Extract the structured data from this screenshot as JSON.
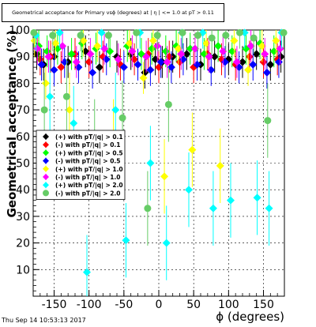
{
  "chart_data": {
    "type": "scatter",
    "title": "Geometrical acceptance for Primary vsϕ (degrees) at | η | <= 1.0 at pT > 0.11",
    "xlabel": "ϕ (degrees)",
    "ylabel": "Geometrical acceptance (%)",
    "xlim": [
      -180,
      180
    ],
    "ylim": [
      0,
      100
    ],
    "xticks": [
      -150,
      -100,
      -50,
      0,
      50,
      100,
      150
    ],
    "yticks": [
      10,
      20,
      30,
      40,
      50,
      60,
      70,
      80,
      90,
      100
    ],
    "grid": true,
    "legend_position": "middle-left",
    "series": [
      {
        "name": "(+) with pT/|q| > 0.1",
        "color": "#000000",
        "marker": "diamond",
        "x": [
          -175,
          -165,
          -150,
          -130,
          -105,
          -85,
          -60,
          -40,
          -20,
          -5,
          5,
          20,
          40,
          60,
          80,
          100,
          120,
          140,
          160,
          175
        ],
        "y": [
          91,
          87,
          90,
          88,
          92,
          86,
          90,
          91,
          84,
          89,
          88,
          90,
          91,
          87,
          90,
          89,
          88,
          91,
          87,
          90
        ]
      },
      {
        "name": "(-) with pT/|q| > 0.1",
        "color": "#ff0000",
        "marker": "diamond",
        "x": [
          -170,
          -155,
          -140,
          -120,
          -100,
          -80,
          -55,
          -35,
          -15,
          0,
          15,
          30,
          50,
          70,
          90,
          110,
          130,
          150,
          170
        ],
        "y": [
          89,
          90,
          86,
          91,
          88,
          90,
          87,
          89,
          91,
          86,
          90,
          88,
          86,
          91,
          89,
          87,
          90,
          88,
          89
        ]
      },
      {
        "name": "(+) with pT/|q| > 0.5",
        "color": "#00ff00",
        "marker": "diamond",
        "x": [
          -172,
          -160,
          -145,
          -125,
          -110,
          -90,
          -70,
          -45,
          -25,
          -10,
          10,
          25,
          45,
          65,
          85,
          105,
          125,
          145,
          165
        ],
        "y": [
          94,
          92,
          93,
          91,
          95,
          93,
          92,
          94,
          91,
          93,
          92,
          94,
          93,
          91,
          94,
          92,
          93,
          95,
          92
        ]
      },
      {
        "name": "(-) with pT/|q| > 0.5",
        "color": "#0000ff",
        "marker": "diamond",
        "x": [
          -168,
          -150,
          -135,
          -115,
          -95,
          -75,
          -50,
          -30,
          -12,
          3,
          18,
          35,
          55,
          75,
          95,
          115,
          135,
          155,
          172
        ],
        "y": [
          87,
          85,
          88,
          86,
          84,
          89,
          86,
          87,
          85,
          88,
          86,
          89,
          87,
          85,
          88,
          86,
          87,
          84,
          88
        ]
      },
      {
        "name": "(+) with pT/|q| > 1.0",
        "color": "#ffff00",
        "marker": "diamond",
        "x": [
          -178,
          -162,
          -148,
          -128,
          -108,
          -88,
          -65,
          -42,
          -22,
          -8,
          8,
          28,
          48,
          68,
          88,
          108,
          128,
          148,
          168
        ],
        "y": [
          96,
          80,
          95,
          70,
          96,
          94,
          60,
          95,
          82,
          96,
          45,
          93,
          55,
          95,
          49,
          96,
          85,
          94,
          96
        ]
      },
      {
        "name": "(-) with pT/|q| > 1.0",
        "color": "#ff00ff",
        "marker": "diamond",
        "x": [
          -174,
          -158,
          -138,
          -118,
          -98,
          -78,
          -58,
          -38,
          -18,
          -2,
          12,
          32,
          52,
          72,
          92,
          112,
          132,
          152,
          174
        ],
        "y": [
          93,
          90,
          94,
          88,
          91,
          93,
          89,
          92,
          90,
          94,
          88,
          91,
          93,
          90,
          92,
          88,
          94,
          91,
          93
        ]
      },
      {
        "name": "(+) with pT/|q| > 2.0",
        "color": "#00ffff",
        "marker": "diamond",
        "x": [
          -176,
          -156,
          -142,
          -122,
          -103,
          -82,
          -62,
          -47,
          -27,
          -12,
          11,
          33,
          43,
          63,
          78,
          103,
          123,
          141,
          158,
          176
        ],
        "y": [
          98,
          75,
          99,
          65,
          9,
          99,
          70,
          21,
          99,
          50,
          20,
          99,
          40,
          99,
          33,
          36,
          99,
          37,
          33,
          99
        ]
      },
      {
        "name": "(-) with pT/|q| > 2.0",
        "color": "#66cc66",
        "marker": "circle",
        "x": [
          -179,
          -164,
          -152,
          -132,
          -112,
          -92,
          -72,
          -52,
          -32,
          -16,
          -2,
          14,
          34,
          56,
          76,
          96,
          116,
          136,
          156,
          179
        ],
        "y": [
          99,
          70,
          98,
          75,
          98,
          60,
          98,
          67,
          99,
          33,
          98,
          72,
          99,
          98,
          97,
          98,
          99,
          97,
          66,
          99
        ]
      }
    ]
  },
  "footer": {
    "timestamp": "Thu Sep 14 10:53:13 2017"
  }
}
